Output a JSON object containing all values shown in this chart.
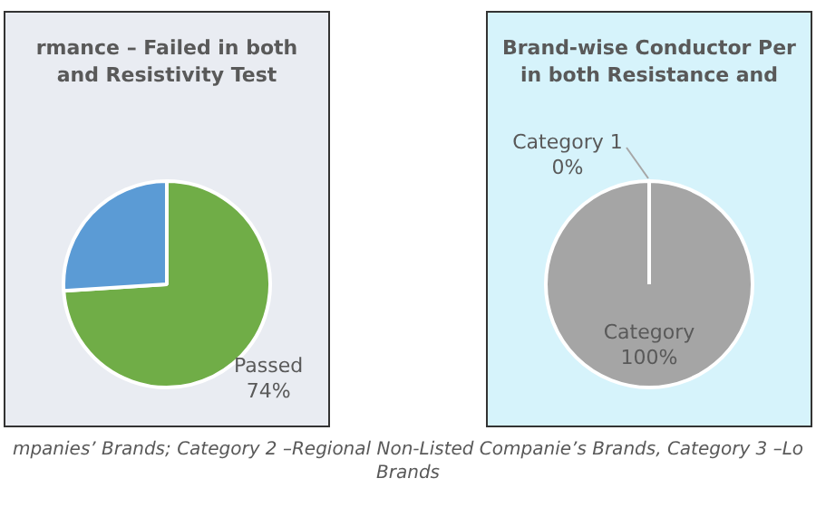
{
  "chart_data": [
    {
      "type": "pie",
      "title": "rmance – Failed in both and Resistivity Test",
      "categories": [
        "Passed",
        null
      ],
      "values": [
        74,
        26
      ],
      "colors": [
        "#70ad47",
        "#5b9bd5"
      ],
      "value_labels": [
        "74%",
        null
      ],
      "legend": false,
      "annotations": [
        "mpanies’ Brands; Category 2 –Regional Non-Listed Companie’s Brands, Category 3 –Lo Brands"
      ]
    },
    {
      "type": "pie",
      "title": "Brand-wise Conductor Per in both Resistance and",
      "categories": [
        "Category 1",
        "Category"
      ],
      "values": [
        0,
        100
      ],
      "colors": [
        "#a5a5a5",
        "#a5a5a5"
      ],
      "value_labels": [
        "0%",
        "100%"
      ],
      "legend": false
    }
  ]
}
